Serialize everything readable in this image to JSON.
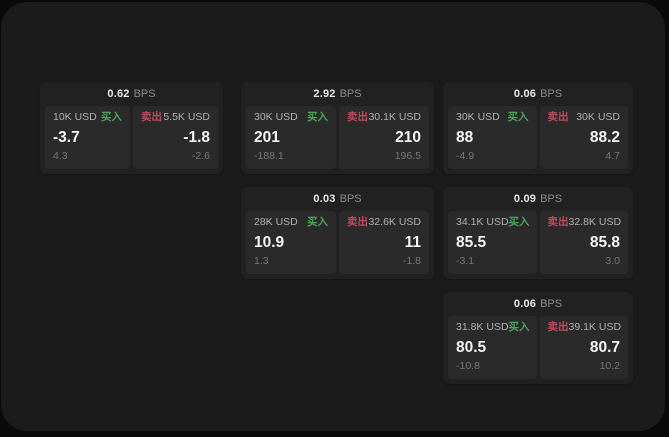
{
  "labels": {
    "bps_suffix": "BPS",
    "buy": "买入",
    "sell": "卖出"
  },
  "colors": {
    "page_bg": "#1b1b1c",
    "card_bg": "#212122",
    "panel_bg": "#2a2a2b",
    "buy_green": "#4aa45c",
    "sell_red": "#c04a5e"
  },
  "cards": [
    {
      "bps": "0.62",
      "col": 1,
      "row": 1,
      "buy": {
        "amount": "10K USD",
        "value": "-3.7",
        "sub": "4.3"
      },
      "sell": {
        "amount": "5.5K USD",
        "value": "-1.8",
        "sub": "-2.6"
      }
    },
    {
      "bps": "2.92",
      "col": 2,
      "row": 1,
      "buy": {
        "amount": "30K USD",
        "value": "201",
        "sub": "-188.1"
      },
      "sell": {
        "amount": "30.1K USD",
        "value": "210",
        "sub": "196.5"
      }
    },
    {
      "bps": "0.06",
      "col": 3,
      "row": 1,
      "buy": {
        "amount": "30K USD",
        "value": "88",
        "sub": "-4.9"
      },
      "sell": {
        "amount": "30K USD",
        "value": "88.2",
        "sub": "4.7"
      }
    },
    {
      "bps": "0.03",
      "col": 2,
      "row": 2,
      "buy": {
        "amount": "28K USD",
        "value": "10.9",
        "sub": "1.3"
      },
      "sell": {
        "amount": "32.6K USD",
        "value": "11",
        "sub": "-1.8"
      }
    },
    {
      "bps": "0.09",
      "col": 3,
      "row": 2,
      "buy": {
        "amount": "34.1K USD",
        "value": "85.5",
        "sub": "-3.1"
      },
      "sell": {
        "amount": "32.8K USD",
        "value": "85.8",
        "sub": "3.0"
      }
    },
    {
      "bps": "0.06",
      "col": 3,
      "row": 3,
      "buy": {
        "amount": "31.8K USD",
        "value": "80.5",
        "sub": "-10.8"
      },
      "sell": {
        "amount": "39.1K USD",
        "value": "80.7",
        "sub": "10.2"
      }
    }
  ]
}
